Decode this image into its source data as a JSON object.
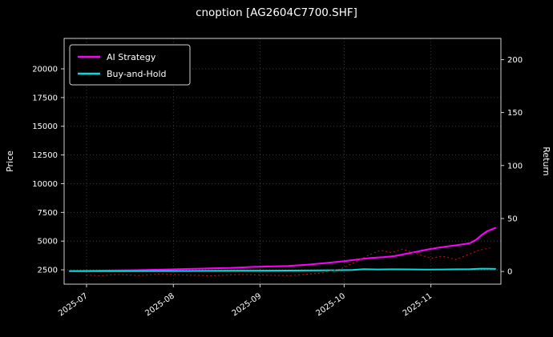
{
  "chart_data": {
    "type": "line",
    "title": "cnoption [AG2604C7700.SHF]",
    "ylabel_left": "Price",
    "ylabel_right": "Return",
    "background": "#000000",
    "grid": true,
    "grid_color": "#4a4a4a",
    "spine_color": "#e6e6e6",
    "text_color": "#ffffff",
    "legend_position": "upper-left",
    "xlim": [
      "2025-06-23",
      "2025-11-26"
    ],
    "x_ticks": [
      {
        "date": "2025-07-01",
        "label": "2025-07"
      },
      {
        "date": "2025-08-01",
        "label": "2025-08"
      },
      {
        "date": "2025-09-01",
        "label": "2025-09"
      },
      {
        "date": "2025-10-01",
        "label": "2025-10"
      },
      {
        "date": "2025-11-01",
        "label": "2025-11"
      }
    ],
    "ylim_left": [
      1250,
      22650
    ],
    "y_ticks_left": [
      2500,
      5000,
      7500,
      10000,
      12500,
      15000,
      17500,
      20000
    ],
    "ylim_right": [
      -12,
      220
    ],
    "y_ticks_right": [
      0,
      50,
      100,
      150,
      200
    ],
    "series": [
      {
        "name": "AI Strategy",
        "color": "#ff00ff",
        "style": "line",
        "width": 2,
        "in_legend": true,
        "points": [
          [
            "2025-06-25",
            2400
          ],
          [
            "2025-07-03",
            2420
          ],
          [
            "2025-07-10",
            2440
          ],
          [
            "2025-07-17",
            2460
          ],
          [
            "2025-07-24",
            2500
          ],
          [
            "2025-07-31",
            2540
          ],
          [
            "2025-08-07",
            2580
          ],
          [
            "2025-08-14",
            2620
          ],
          [
            "2025-08-21",
            2660
          ],
          [
            "2025-08-28",
            2740
          ],
          [
            "2025-09-04",
            2790
          ],
          [
            "2025-09-11",
            2840
          ],
          [
            "2025-09-17",
            2930
          ],
          [
            "2025-09-24",
            3080
          ],
          [
            "2025-10-01",
            3250
          ],
          [
            "2025-10-07",
            3440
          ],
          [
            "2025-10-11",
            3540
          ],
          [
            "2025-10-15",
            3600
          ],
          [
            "2025-10-19",
            3700
          ],
          [
            "2025-10-23",
            3890
          ],
          [
            "2025-10-27",
            4080
          ],
          [
            "2025-10-31",
            4280
          ],
          [
            "2025-11-04",
            4440
          ],
          [
            "2025-11-07",
            4540
          ],
          [
            "2025-11-10",
            4640
          ],
          [
            "2025-11-13",
            4740
          ],
          [
            "2025-11-15",
            4830
          ],
          [
            "2025-11-17",
            5100
          ],
          [
            "2025-11-19",
            5500
          ],
          [
            "2025-11-21",
            5850
          ],
          [
            "2025-11-23",
            6050
          ],
          [
            "2025-11-24",
            6150
          ]
        ]
      },
      {
        "name": "Buy-and-Hold",
        "color": "#00dcdc",
        "style": "line",
        "width": 2,
        "in_legend": true,
        "points": [
          [
            "2025-06-25",
            2380
          ],
          [
            "2025-07-10",
            2385
          ],
          [
            "2025-07-24",
            2395
          ],
          [
            "2025-08-07",
            2400
          ],
          [
            "2025-08-21",
            2415
          ],
          [
            "2025-09-04",
            2430
          ],
          [
            "2025-09-18",
            2445
          ],
          [
            "2025-09-28",
            2465
          ],
          [
            "2025-10-04",
            2490
          ],
          [
            "2025-10-08",
            2560
          ],
          [
            "2025-10-13",
            2530
          ],
          [
            "2025-10-18",
            2545
          ],
          [
            "2025-10-24",
            2540
          ],
          [
            "2025-10-30",
            2520
          ],
          [
            "2025-11-05",
            2530
          ],
          [
            "2025-11-10",
            2545
          ],
          [
            "2025-11-15",
            2560
          ],
          [
            "2025-11-19",
            2600
          ],
          [
            "2025-11-22",
            2590
          ],
          [
            "2025-11-24",
            2580
          ]
        ]
      },
      {
        "name": "underlying-dotted",
        "color": "#bb1111",
        "style": "dotted",
        "width": 1.2,
        "in_legend": false,
        "points": [
          [
            "2025-07-01",
            2050
          ],
          [
            "2025-07-06",
            1980
          ],
          [
            "2025-07-12",
            2100
          ],
          [
            "2025-07-20",
            2000
          ],
          [
            "2025-07-28",
            2150
          ],
          [
            "2025-08-05",
            2050
          ],
          [
            "2025-08-15",
            1980
          ],
          [
            "2025-08-25",
            2100
          ],
          [
            "2025-09-03",
            2040
          ],
          [
            "2025-09-12",
            2000
          ],
          [
            "2025-09-22",
            2200
          ],
          [
            "2025-09-30",
            2600
          ],
          [
            "2025-10-06",
            3300
          ],
          [
            "2025-10-10",
            3800
          ],
          [
            "2025-10-14",
            4200
          ],
          [
            "2025-10-18",
            4000
          ],
          [
            "2025-10-22",
            4300
          ],
          [
            "2025-10-27",
            3900
          ],
          [
            "2025-11-01",
            3500
          ],
          [
            "2025-11-05",
            3700
          ],
          [
            "2025-11-10",
            3400
          ],
          [
            "2025-11-14",
            3800
          ],
          [
            "2025-11-18",
            4200
          ],
          [
            "2025-11-22",
            4400
          ]
        ]
      }
    ]
  }
}
